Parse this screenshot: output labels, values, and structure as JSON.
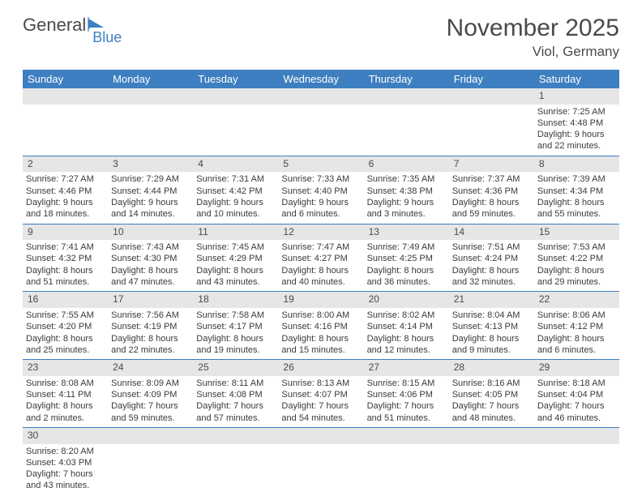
{
  "logo": {
    "text1": "General",
    "text2": "Blue"
  },
  "title": "November 2025",
  "location": "Viol, Germany",
  "columns": [
    "Sunday",
    "Monday",
    "Tuesday",
    "Wednesday",
    "Thursday",
    "Friday",
    "Saturday"
  ],
  "colors": {
    "header_bg": "#3d7fc0",
    "header_text": "#ffffff",
    "daynum_bg": "#e6e6e6",
    "border": "#3d7fc0",
    "text": "#3a3a3a",
    "accent": "#3d7fc0"
  },
  "weeks": [
    {
      "nums": [
        "",
        "",
        "",
        "",
        "",
        "",
        "1"
      ],
      "cells": [
        null,
        null,
        null,
        null,
        null,
        null,
        {
          "sunrise": "Sunrise: 7:25 AM",
          "sunset": "Sunset: 4:48 PM",
          "day1": "Daylight: 9 hours",
          "day2": "and 22 minutes."
        }
      ]
    },
    {
      "nums": [
        "2",
        "3",
        "4",
        "5",
        "6",
        "7",
        "8"
      ],
      "cells": [
        {
          "sunrise": "Sunrise: 7:27 AM",
          "sunset": "Sunset: 4:46 PM",
          "day1": "Daylight: 9 hours",
          "day2": "and 18 minutes."
        },
        {
          "sunrise": "Sunrise: 7:29 AM",
          "sunset": "Sunset: 4:44 PM",
          "day1": "Daylight: 9 hours",
          "day2": "and 14 minutes."
        },
        {
          "sunrise": "Sunrise: 7:31 AM",
          "sunset": "Sunset: 4:42 PM",
          "day1": "Daylight: 9 hours",
          "day2": "and 10 minutes."
        },
        {
          "sunrise": "Sunrise: 7:33 AM",
          "sunset": "Sunset: 4:40 PM",
          "day1": "Daylight: 9 hours",
          "day2": "and 6 minutes."
        },
        {
          "sunrise": "Sunrise: 7:35 AM",
          "sunset": "Sunset: 4:38 PM",
          "day1": "Daylight: 9 hours",
          "day2": "and 3 minutes."
        },
        {
          "sunrise": "Sunrise: 7:37 AM",
          "sunset": "Sunset: 4:36 PM",
          "day1": "Daylight: 8 hours",
          "day2": "and 59 minutes."
        },
        {
          "sunrise": "Sunrise: 7:39 AM",
          "sunset": "Sunset: 4:34 PM",
          "day1": "Daylight: 8 hours",
          "day2": "and 55 minutes."
        }
      ]
    },
    {
      "nums": [
        "9",
        "10",
        "11",
        "12",
        "13",
        "14",
        "15"
      ],
      "cells": [
        {
          "sunrise": "Sunrise: 7:41 AM",
          "sunset": "Sunset: 4:32 PM",
          "day1": "Daylight: 8 hours",
          "day2": "and 51 minutes."
        },
        {
          "sunrise": "Sunrise: 7:43 AM",
          "sunset": "Sunset: 4:30 PM",
          "day1": "Daylight: 8 hours",
          "day2": "and 47 minutes."
        },
        {
          "sunrise": "Sunrise: 7:45 AM",
          "sunset": "Sunset: 4:29 PM",
          "day1": "Daylight: 8 hours",
          "day2": "and 43 minutes."
        },
        {
          "sunrise": "Sunrise: 7:47 AM",
          "sunset": "Sunset: 4:27 PM",
          "day1": "Daylight: 8 hours",
          "day2": "and 40 minutes."
        },
        {
          "sunrise": "Sunrise: 7:49 AM",
          "sunset": "Sunset: 4:25 PM",
          "day1": "Daylight: 8 hours",
          "day2": "and 36 minutes."
        },
        {
          "sunrise": "Sunrise: 7:51 AM",
          "sunset": "Sunset: 4:24 PM",
          "day1": "Daylight: 8 hours",
          "day2": "and 32 minutes."
        },
        {
          "sunrise": "Sunrise: 7:53 AM",
          "sunset": "Sunset: 4:22 PM",
          "day1": "Daylight: 8 hours",
          "day2": "and 29 minutes."
        }
      ]
    },
    {
      "nums": [
        "16",
        "17",
        "18",
        "19",
        "20",
        "21",
        "22"
      ],
      "cells": [
        {
          "sunrise": "Sunrise: 7:55 AM",
          "sunset": "Sunset: 4:20 PM",
          "day1": "Daylight: 8 hours",
          "day2": "and 25 minutes."
        },
        {
          "sunrise": "Sunrise: 7:56 AM",
          "sunset": "Sunset: 4:19 PM",
          "day1": "Daylight: 8 hours",
          "day2": "and 22 minutes."
        },
        {
          "sunrise": "Sunrise: 7:58 AM",
          "sunset": "Sunset: 4:17 PM",
          "day1": "Daylight: 8 hours",
          "day2": "and 19 minutes."
        },
        {
          "sunrise": "Sunrise: 8:00 AM",
          "sunset": "Sunset: 4:16 PM",
          "day1": "Daylight: 8 hours",
          "day2": "and 15 minutes."
        },
        {
          "sunrise": "Sunrise: 8:02 AM",
          "sunset": "Sunset: 4:14 PM",
          "day1": "Daylight: 8 hours",
          "day2": "and 12 minutes."
        },
        {
          "sunrise": "Sunrise: 8:04 AM",
          "sunset": "Sunset: 4:13 PM",
          "day1": "Daylight: 8 hours",
          "day2": "and 9 minutes."
        },
        {
          "sunrise": "Sunrise: 8:06 AM",
          "sunset": "Sunset: 4:12 PM",
          "day1": "Daylight: 8 hours",
          "day2": "and 6 minutes."
        }
      ]
    },
    {
      "nums": [
        "23",
        "24",
        "25",
        "26",
        "27",
        "28",
        "29"
      ],
      "cells": [
        {
          "sunrise": "Sunrise: 8:08 AM",
          "sunset": "Sunset: 4:11 PM",
          "day1": "Daylight: 8 hours",
          "day2": "and 2 minutes."
        },
        {
          "sunrise": "Sunrise: 8:09 AM",
          "sunset": "Sunset: 4:09 PM",
          "day1": "Daylight: 7 hours",
          "day2": "and 59 minutes."
        },
        {
          "sunrise": "Sunrise: 8:11 AM",
          "sunset": "Sunset: 4:08 PM",
          "day1": "Daylight: 7 hours",
          "day2": "and 57 minutes."
        },
        {
          "sunrise": "Sunrise: 8:13 AM",
          "sunset": "Sunset: 4:07 PM",
          "day1": "Daylight: 7 hours",
          "day2": "and 54 minutes."
        },
        {
          "sunrise": "Sunrise: 8:15 AM",
          "sunset": "Sunset: 4:06 PM",
          "day1": "Daylight: 7 hours",
          "day2": "and 51 minutes."
        },
        {
          "sunrise": "Sunrise: 8:16 AM",
          "sunset": "Sunset: 4:05 PM",
          "day1": "Daylight: 7 hours",
          "day2": "and 48 minutes."
        },
        {
          "sunrise": "Sunrise: 8:18 AM",
          "sunset": "Sunset: 4:04 PM",
          "day1": "Daylight: 7 hours",
          "day2": "and 46 minutes."
        }
      ]
    },
    {
      "nums": [
        "30",
        "",
        "",
        "",
        "",
        "",
        ""
      ],
      "cells": [
        {
          "sunrise": "Sunrise: 8:20 AM",
          "sunset": "Sunset: 4:03 PM",
          "day1": "Daylight: 7 hours",
          "day2": "and 43 minutes."
        },
        null,
        null,
        null,
        null,
        null,
        null
      ]
    }
  ]
}
